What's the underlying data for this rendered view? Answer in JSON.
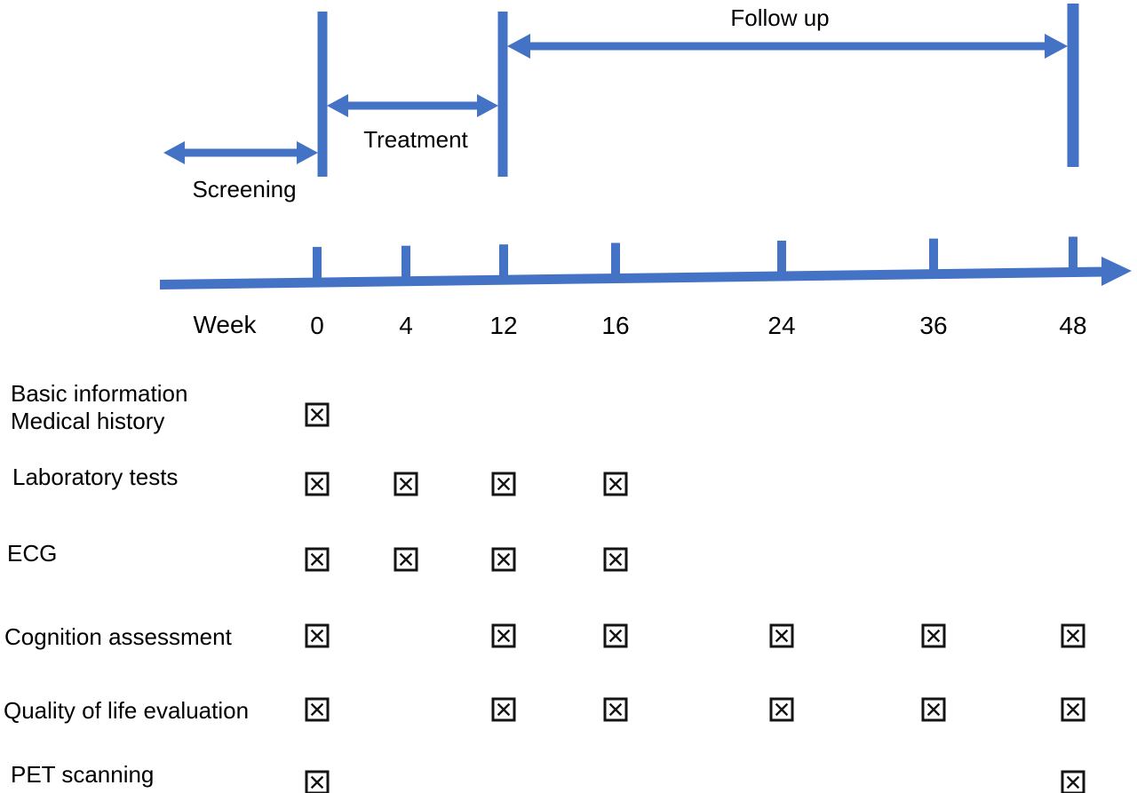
{
  "figure": {
    "background": "#ffffff"
  },
  "colors": {
    "arrow_blue": "#4472C4",
    "text_black": "#000000",
    "checkbox_black": "#141414"
  },
  "phases": [
    {
      "name": "screening",
      "label": "Screening",
      "ends_at_week": "0"
    },
    {
      "name": "treatment",
      "label": "Treatment",
      "from_week": "0",
      "to_week": "12"
    },
    {
      "name": "followup",
      "label": "Follow up",
      "from_week": "12",
      "to_week": "48"
    }
  ],
  "timeline": {
    "axis_label": "Week",
    "weeks": [
      "0",
      "4",
      "12",
      "16",
      "24",
      "36",
      "48"
    ]
  },
  "assessments": [
    {
      "label": "Basic information\nMedical history",
      "checked_weeks": [
        "0"
      ]
    },
    {
      "label": "Laboratory tests",
      "checked_weeks": [
        "0",
        "4",
        "12",
        "16"
      ]
    },
    {
      "label": "ECG",
      "checked_weeks": [
        "0",
        "4",
        "12",
        "16"
      ]
    },
    {
      "label": "Cognition assessment",
      "checked_weeks": [
        "0",
        "12",
        "16",
        "24",
        "36",
        "48"
      ]
    },
    {
      "label": "Quality of life evaluation",
      "checked_weeks": [
        "0",
        "12",
        "16",
        "24",
        "36",
        "48"
      ]
    },
    {
      "label": "PET scanning",
      "checked_weeks": [
        "0",
        "48"
      ]
    }
  ],
  "checkbox_symbol": "ballot-box-with-x"
}
